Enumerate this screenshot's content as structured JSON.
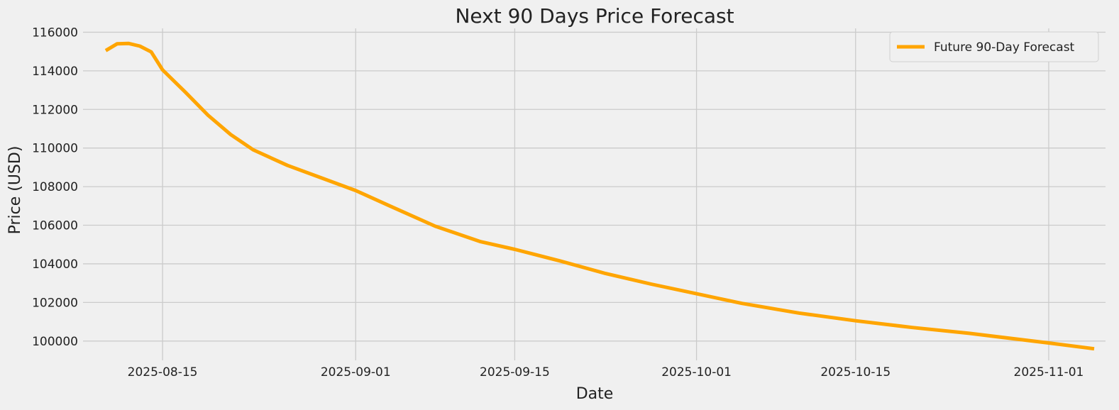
{
  "chart_data": {
    "type": "line",
    "title": "Next 90 Days Price Forecast",
    "xlabel": "Date",
    "ylabel": "Price (USD)",
    "grid": true,
    "legend_position": "top-right",
    "xlim": [
      "2025-08-08",
      "2025-11-06"
    ],
    "ylim": [
      99000,
      116200
    ],
    "x_ticks": [
      "2025-08-15",
      "2025-09-01",
      "2025-09-15",
      "2025-10-01",
      "2025-10-15",
      "2025-11-01"
    ],
    "y_ticks": [
      100000,
      102000,
      104000,
      106000,
      108000,
      110000,
      112000,
      114000,
      116000
    ],
    "series": [
      {
        "name": "Future 90-Day Forecast",
        "color": "#ffa500",
        "points": [
          [
            "2025-08-10",
            115050
          ],
          [
            "2025-08-11",
            115400
          ],
          [
            "2025-08-12",
            115420
          ],
          [
            "2025-08-13",
            115280
          ],
          [
            "2025-08-14",
            114980
          ],
          [
            "2025-08-15",
            114050
          ],
          [
            "2025-08-17",
            112900
          ],
          [
            "2025-08-19",
            111700
          ],
          [
            "2025-08-21",
            110700
          ],
          [
            "2025-08-23",
            109900
          ],
          [
            "2025-08-26",
            109100
          ],
          [
            "2025-08-29",
            108450
          ],
          [
            "2025-09-01",
            107800
          ],
          [
            "2025-09-04",
            107000
          ],
          [
            "2025-09-08",
            105950
          ],
          [
            "2025-09-12",
            105150
          ],
          [
            "2025-09-15",
            104750
          ],
          [
            "2025-09-19",
            104150
          ],
          [
            "2025-09-23",
            103500
          ],
          [
            "2025-09-27",
            102950
          ],
          [
            "2025-10-01",
            102450
          ],
          [
            "2025-10-05",
            101950
          ],
          [
            "2025-10-10",
            101450
          ],
          [
            "2025-10-15",
            101050
          ],
          [
            "2025-10-20",
            100700
          ],
          [
            "2025-10-25",
            100400
          ],
          [
            "2025-11-01",
            99900
          ],
          [
            "2025-11-05",
            99600
          ]
        ]
      }
    ]
  }
}
